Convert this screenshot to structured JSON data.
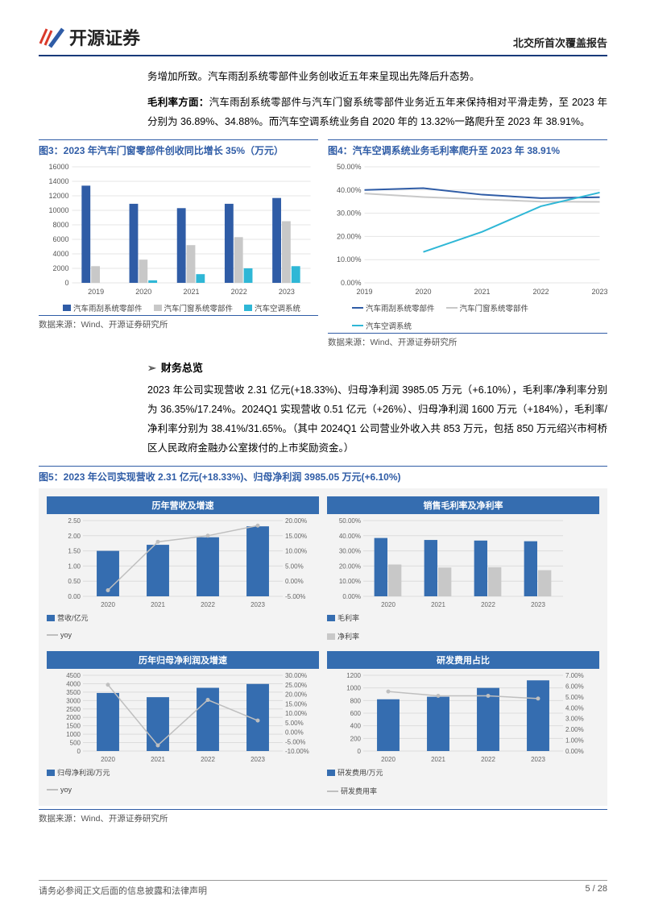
{
  "header": {
    "logo_text": "开源证券",
    "doc_type": "北交所首次覆盖报告"
  },
  "para_intro": "务增加所致。汽车雨刮系统零部件业务创收近五年来呈现出先降后升态势。",
  "para_margin_bold": "毛利率方面：",
  "para_margin_rest": "汽车雨刮系统零部件与汽车门窗系统零部件业务近五年来保持相对平滑走势，至 2023 年分别为 36.89%、34.88%。而汽车空调系统业务自 2020 年的 13.32%一路爬升至 2023 年 38.91%。",
  "fig3": {
    "title": "图3：2023 年汽车门窗零部件创收同比增长 35%（万元）",
    "type": "bar",
    "categories": [
      "2019",
      "2020",
      "2021",
      "2022",
      "2023"
    ],
    "series": [
      {
        "name": "汽车雨刮系统零部件",
        "color": "#2f5ca6",
        "values": [
          13400,
          10900,
          10300,
          10900,
          11700
        ]
      },
      {
        "name": "汽车门窗系统零部件",
        "color": "#c8c8c8",
        "values": [
          2300,
          3200,
          5200,
          6300,
          8500
        ]
      },
      {
        "name": "汽车空调系统",
        "color": "#2fb7d6",
        "values": [
          0,
          350,
          1200,
          2000,
          2300
        ]
      }
    ],
    "ylim": [
      0,
      16000
    ],
    "ytick_step": 2000,
    "background_color": "#ffffff",
    "grid_color": "#e5e5e5",
    "label_fontsize": 9
  },
  "fig4": {
    "title": "图4：汽车空调系统业务毛利率爬升至 2023 年 38.91%",
    "type": "line",
    "categories": [
      "2019",
      "2020",
      "2021",
      "2022",
      "2023"
    ],
    "series": [
      {
        "name": "汽车雨刮系统零部件",
        "color": "#2f5ca6",
        "values": [
          40.0,
          40.8,
          38.0,
          36.5,
          36.89
        ]
      },
      {
        "name": "汽车门窗系统零部件",
        "color": "#c8c8c8",
        "values": [
          38.5,
          37.0,
          36.0,
          35.0,
          34.88
        ]
      },
      {
        "name": "汽车空调系统",
        "color": "#2fb7d6",
        "values": [
          null,
          13.32,
          22.0,
          33.0,
          38.91
        ]
      }
    ],
    "ylim": [
      0,
      50
    ],
    "ytick_step": 10,
    "ytick_format": "%",
    "background_color": "#ffffff",
    "grid_color": "#e5e5e5",
    "label_fontsize": 9
  },
  "data_source": "数据来源：Wind、开源证券研究所",
  "section_overview": "财务总览",
  "para_overview": "2023 年公司实现营收 2.31 亿元(+18.33%)、归母净利润 3985.05 万元（+6.10%），毛利率/净利率分别为 36.35%/17.24%。2024Q1 实现营收 0.51 亿元（+26%）、归母净利润 1600 万元（+184%），毛利率/净利率分别为 38.41%/31.65%。（其中 2024Q1 公司营业外收入共 853 万元，包括 850 万元绍兴市柯桥区人民政府金融办公室拨付的上市奖励资金。）",
  "fig5": {
    "title": "图5：2023 年公司实现营收 2.31 亿元(+18.33%)、归母净利润 3985.05 万元(+6.10%)",
    "panels": [
      {
        "name": "历年营收及增速",
        "type": "bar+line",
        "categories": [
          "2020",
          "2021",
          "2022",
          "2023"
        ],
        "bar": {
          "name": "营收/亿元",
          "color": "#356db0",
          "values": [
            1.5,
            1.7,
            1.95,
            2.31
          ]
        },
        "line": {
          "name": "yoy",
          "color": "#bfbfbf",
          "values": [
            -3.0,
            13.0,
            15.0,
            18.33
          ]
        },
        "ylim_left": [
          0,
          2.5
        ],
        "ytick_left": 0.5,
        "ylim_right": [
          -5,
          20
        ],
        "ytick_right": 5,
        "right_format": "%"
      },
      {
        "name": "销售毛利率及净利率",
        "type": "grouped-bar",
        "categories": [
          "2020",
          "2021",
          "2022",
          "2023"
        ],
        "series": [
          {
            "name": "毛利率",
            "color": "#356db0",
            "values": [
              38.5,
              37.2,
              36.8,
              36.35
            ]
          },
          {
            "name": "净利率",
            "color": "#c8c8c8",
            "values": [
              21.0,
              19.0,
              19.2,
              17.24
            ]
          }
        ],
        "ylim": [
          0,
          50
        ],
        "ytick": 10,
        "format": "%"
      },
      {
        "name": "历年归母净利润及增速",
        "type": "bar+line",
        "categories": [
          "2020",
          "2021",
          "2022",
          "2023"
        ],
        "bar": {
          "name": "归母净利润/万元",
          "color": "#356db0",
          "values": [
            3450,
            3200,
            3756,
            3985
          ]
        },
        "line": {
          "name": "yoy",
          "color": "#bfbfbf",
          "values": [
            25.0,
            -7.0,
            17.0,
            6.1
          ]
        },
        "ylim_left": [
          0,
          4500
        ],
        "ytick_left": 500,
        "ylim_right": [
          -10,
          30
        ],
        "ytick_right": 5,
        "right_format": "%"
      },
      {
        "name": "研发费用占比",
        "type": "bar+line",
        "categories": [
          "2020",
          "2021",
          "2022",
          "2023"
        ],
        "bar": {
          "name": "研发费用/万元",
          "color": "#356db0",
          "values": [
            820,
            860,
            1000,
            1120
          ]
        },
        "line": {
          "name": "研发费用率",
          "color": "#bfbfbf",
          "values": [
            5.5,
            5.1,
            5.1,
            4.85
          ]
        },
        "ylim_left": [
          0,
          1200
        ],
        "ytick_left": 200,
        "ylim_right": [
          0,
          7
        ],
        "ytick_right": 1,
        "right_format": "%"
      }
    ],
    "background_color": "#f3f3f3"
  },
  "footer": {
    "disclaimer": "请务必参阅正文后面的信息披露和法律声明",
    "page": "5 / 28"
  }
}
